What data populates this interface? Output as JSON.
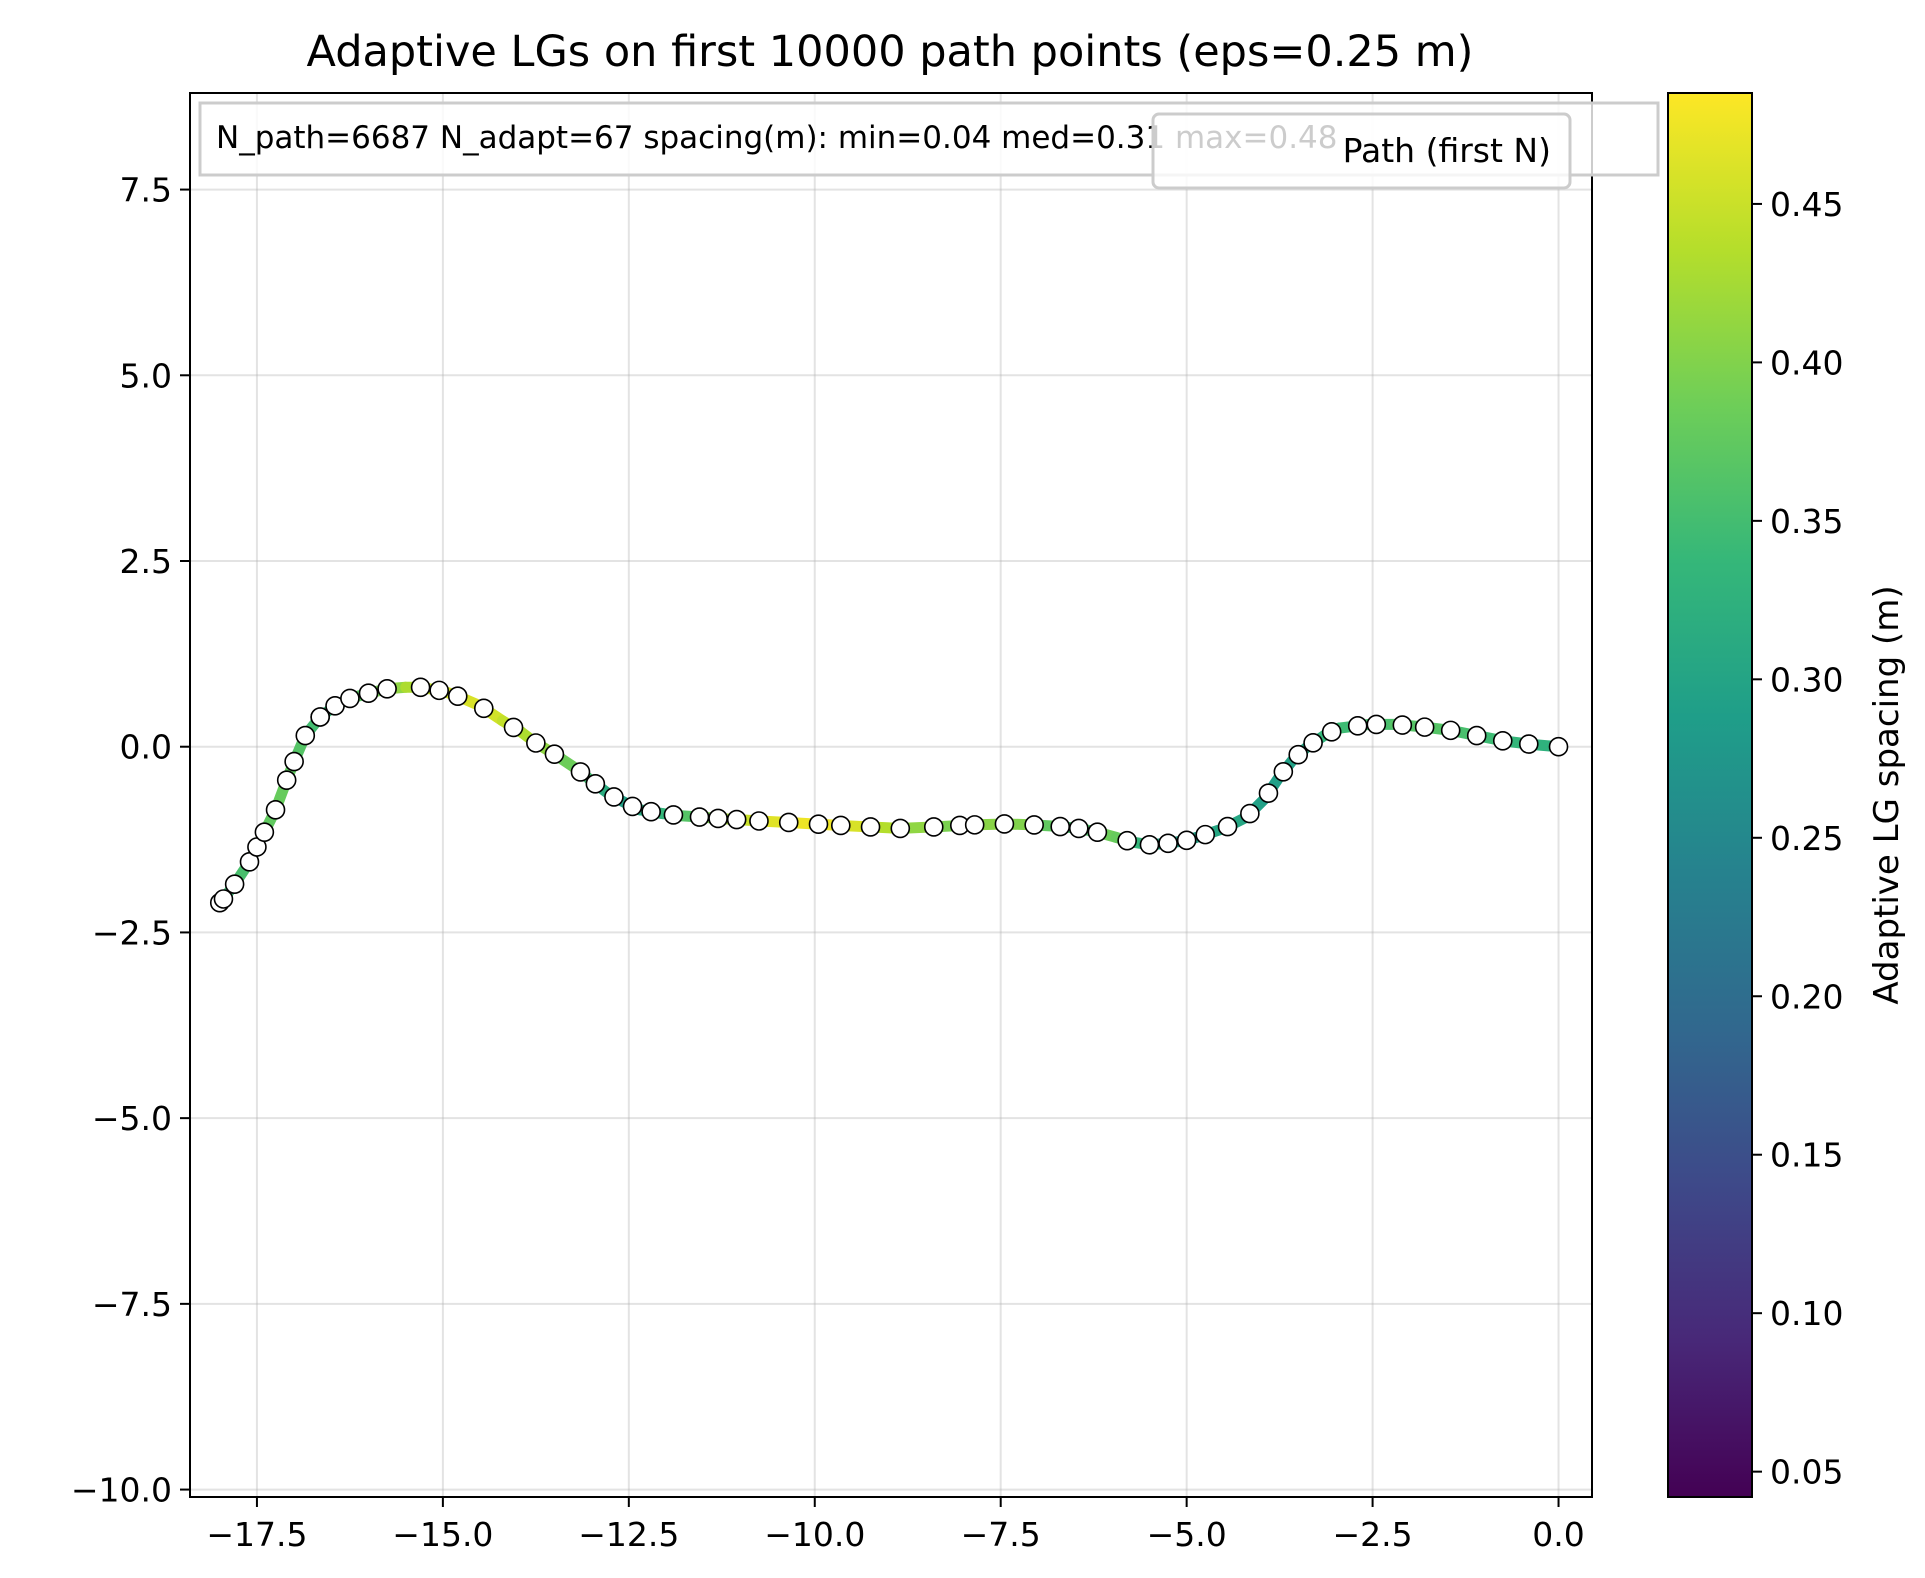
{
  "chart_data": {
    "type": "line",
    "title": "Adaptive LGs on first 10000 path points (eps=0.25 m)",
    "xlabel": "",
    "ylabel": "",
    "xlim": [
      -18.4,
      0.45
    ],
    "ylim": [
      -10.1,
      8.8
    ],
    "xticks": [
      -17.5,
      -15.0,
      -12.5,
      -10.0,
      -7.5,
      -5.0,
      -2.5,
      0.0
    ],
    "yticks": [
      -10.0,
      -7.5,
      -5.0,
      -2.5,
      0.0,
      2.5,
      5.0,
      7.5
    ],
    "xtick_labels": [
      "−17.5",
      "−15.0",
      "−12.5",
      "−10.0",
      "−7.5",
      "−5.0",
      "−2.5",
      "0.0"
    ],
    "ytick_labels": [
      "−10.0",
      "−7.5",
      "−5.0",
      "−2.5",
      "0.0",
      "2.5",
      "5.0",
      "7.5"
    ],
    "grid": true,
    "legend_entries": [
      "Path (first N)"
    ],
    "legend_position": "upper-right",
    "stats_text": "N_path=6687  N_adapt=67   spacing(m): min=0.04  med=0.31  max=0.48",
    "colorbar": {
      "label": "Adaptive LG spacing (m)",
      "colormap": "viridis",
      "range": [
        0.042,
        0.485
      ],
      "ticks": [
        0.05,
        0.1,
        0.15,
        0.2,
        0.25,
        0.3,
        0.35,
        0.4,
        0.45
      ],
      "tick_labels": [
        "0.05",
        "0.10",
        "0.15",
        "0.20",
        "0.25",
        "0.30",
        "0.35",
        "0.40",
        "0.45"
      ],
      "stops": [
        "#440154",
        "#482878",
        "#3e4989",
        "#31688e",
        "#26828e",
        "#1f9e89",
        "#35b779",
        "#6ece58",
        "#b5de2b",
        "#fde725"
      ]
    },
    "series": [
      {
        "role": "path",
        "x": [
          -18.0,
          -17.95,
          -17.8,
          -17.6,
          -17.5,
          -17.4,
          -17.25,
          -17.1,
          -17.0,
          -16.85,
          -16.65,
          -16.45,
          -16.25,
          -16.0,
          -15.75,
          -15.5,
          -15.3,
          -15.0,
          -14.8,
          -14.5,
          -14.2,
          -13.95,
          -13.75,
          -13.5,
          -13.2,
          -12.95,
          -12.75,
          -12.5,
          -12.35,
          -12.05,
          -11.8,
          -11.5,
          -11.25,
          -11.05,
          -10.75,
          -10.35,
          -10.0,
          -9.65,
          -9.25,
          -8.85,
          -8.4,
          -8.05,
          -7.8,
          -7.45,
          -7.1,
          -6.75,
          -6.45,
          -6.2,
          -5.95,
          -5.75,
          -5.5,
          -5.25,
          -5.0,
          -4.8,
          -4.5,
          -4.2,
          -3.95,
          -3.75,
          -3.55,
          -3.35,
          -3.15,
          -2.95,
          -2.55,
          -2.2,
          -1.85,
          -1.45,
          -1.1,
          -0.75,
          -0.35,
          0.0
        ],
        "y": [
          -2.1,
          -2.05,
          -1.85,
          -1.55,
          -1.35,
          -1.15,
          -0.85,
          -0.45,
          -0.2,
          0.15,
          0.4,
          0.55,
          0.65,
          0.72,
          0.78,
          0.8,
          0.8,
          0.75,
          0.68,
          0.55,
          0.35,
          0.2,
          0.05,
          -0.1,
          -0.3,
          -0.5,
          -0.65,
          -0.78,
          -0.85,
          -0.9,
          -0.93,
          -0.95,
          -0.97,
          -0.98,
          -1.0,
          -1.02,
          -1.04,
          -1.06,
          -1.08,
          -1.1,
          -1.08,
          -1.06,
          -1.05,
          -1.04,
          -1.05,
          -1.07,
          -1.1,
          -1.15,
          -1.22,
          -1.28,
          -1.32,
          -1.3,
          -1.26,
          -1.2,
          -1.1,
          -0.95,
          -0.7,
          -0.4,
          -0.15,
          0.02,
          0.15,
          0.25,
          0.3,
          0.3,
          0.27,
          0.22,
          0.15,
          0.08,
          0.03,
          0.0
        ],
        "spacing": [
          0.33,
          0.34,
          0.35,
          0.36,
          0.36,
          0.37,
          0.38,
          0.38,
          0.37,
          0.36,
          0.34,
          0.34,
          0.36,
          0.38,
          0.4,
          0.42,
          0.44,
          0.45,
          0.46,
          0.46,
          0.45,
          0.44,
          0.42,
          0.4,
          0.37,
          0.33,
          0.3,
          0.29,
          0.3,
          0.32,
          0.35,
          0.38,
          0.41,
          0.44,
          0.46,
          0.47,
          0.48,
          0.47,
          0.45,
          0.42,
          0.4,
          0.39,
          0.4,
          0.41,
          0.39,
          0.36,
          0.35,
          0.37,
          0.4,
          0.36,
          0.31,
          0.29,
          0.29,
          0.3,
          0.31,
          0.3,
          0.29,
          0.29,
          0.3,
          0.31,
          0.33,
          0.34,
          0.35,
          0.36,
          0.37,
          0.36,
          0.35,
          0.34,
          0.33,
          0.32
        ]
      },
      {
        "role": "adaptive_points",
        "x": [
          -18.0,
          -17.95,
          -17.8,
          -17.6,
          -17.5,
          -17.4,
          -17.25,
          -17.1,
          -17.0,
          -16.85,
          -16.65,
          -16.45,
          -16.25,
          -16.0,
          -15.75,
          -15.3,
          -15.05,
          -14.8,
          -14.45,
          -14.05,
          -13.75,
          -13.5,
          -13.15,
          -12.95,
          -12.7,
          -12.45,
          -12.2,
          -11.9,
          -11.55,
          -11.3,
          -11.05,
          -10.75,
          -10.35,
          -9.95,
          -9.65,
          -9.25,
          -8.85,
          -8.4,
          -8.05,
          -7.85,
          -7.45,
          -7.05,
          -6.7,
          -6.45,
          -6.2,
          -5.8,
          -5.5,
          -5.25,
          -5.0,
          -4.75,
          -4.45,
          -4.15,
          -3.9,
          -3.7,
          -3.5,
          -3.3,
          -3.05,
          -2.7,
          -2.45,
          -2.1,
          -1.8,
          -1.45,
          -1.1,
          -0.75,
          -0.4,
          0.0,
          -16.65
        ]
      }
    ]
  }
}
